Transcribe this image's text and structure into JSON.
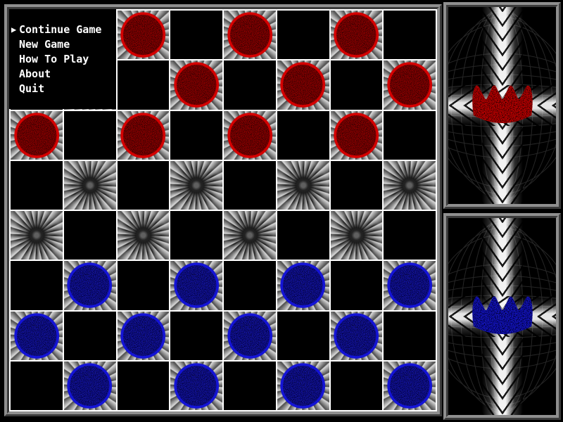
{
  "menu": {
    "cursor": "▶",
    "items": [
      {
        "label": "Continue Game",
        "selected": true
      },
      {
        "label": "New Game",
        "selected": false
      },
      {
        "label": "How To Play",
        "selected": false
      },
      {
        "label": "About",
        "selected": false
      },
      {
        "label": "Quit",
        "selected": false
      }
    ]
  },
  "board": {
    "rows": 8,
    "cols": 8,
    "pieces": [
      "..r.r.r.",
      "...r.r.r",
      "r.r.r.r.",
      "........",
      "........",
      ".b.b.b.b",
      "b.b.b.b.",
      ".b.b.b.b"
    ]
  },
  "panels": {
    "top": {
      "icon": "red-crown-icon",
      "crown_color": "#cb0404"
    },
    "bottom": {
      "icon": "blue-crown-icon",
      "crown_color": "#1c1ccd"
    }
  },
  "colors": {
    "red_piece_rim": "#d40000",
    "red_piece_body": "#9a0303",
    "blue_piece_rim": "#1414d6",
    "blue_piece_body": "#1a1aae",
    "board_line": "#ffffff",
    "dark_square": "#000000",
    "menu_bg": "#000000",
    "menu_text": "#ffffff",
    "frame_gray": "#8f8f8f"
  }
}
